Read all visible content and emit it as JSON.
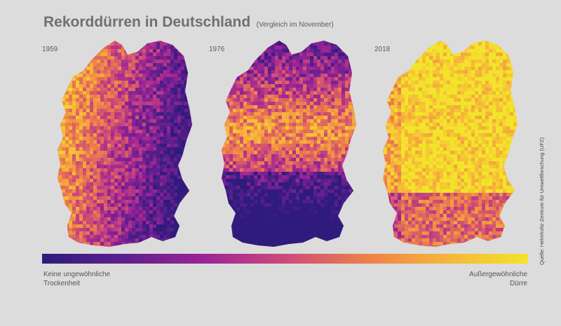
{
  "header": {
    "title": "Rekorddürren in Deutschland",
    "subtitle": "(Vergleich im November)"
  },
  "maps": [
    {
      "year": "1959",
      "drought_level": 0.45
    },
    {
      "year": "1976",
      "drought_level": 0.35
    },
    {
      "year": "2018",
      "drought_level": 0.85
    }
  ],
  "legend": {
    "left_label_line1": "Keine ungewöhnliche",
    "left_label_line2": "Trockenheit",
    "right_label_line1": "Außergewöhnliche",
    "right_label_line2": "Dürre",
    "colors": [
      "#2f1b7c",
      "#5d1f8e",
      "#9c2396",
      "#cc4a7a",
      "#ee7f4a",
      "#f7b53a",
      "#f2e42a"
    ]
  },
  "source": "Quelle: Helmholtz-Zentrum für Umweltforschung (UFZ)"
}
